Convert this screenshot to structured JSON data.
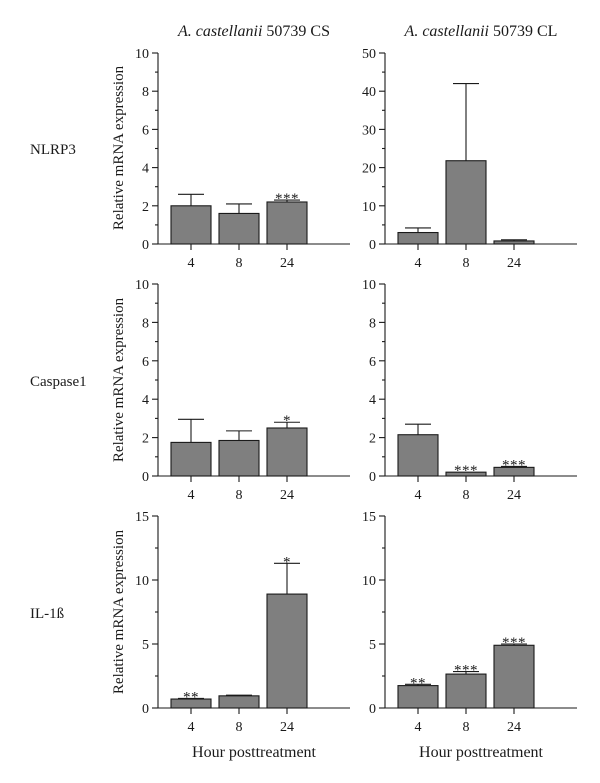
{
  "column_titles": [
    {
      "species": "A. castellanii",
      "rest": " 50739 CS"
    },
    {
      "species": "A. castellanii",
      "rest": " 50739 CL"
    }
  ],
  "row_labels": [
    "NLRP3",
    "Caspase1",
    "IL-1ß"
  ],
  "ylabel": "Relative mRNA expression",
  "xlabel": "Hour posttreatment",
  "colors": {
    "bar": "#7f7f7f",
    "axis": "#1a1a1a"
  },
  "chart_data": [
    {
      "type": "bar",
      "row": "NLRP3",
      "column": "CS",
      "categories": [
        "4",
        "8",
        "24"
      ],
      "values": [
        2.0,
        1.6,
        2.2
      ],
      "errors": [
        0.6,
        0.5,
        0.1
      ],
      "significance": [
        "",
        "",
        "***"
      ],
      "ylim": [
        0,
        10
      ],
      "yticks": [
        0,
        2,
        4,
        6,
        8,
        10
      ]
    },
    {
      "type": "bar",
      "row": "NLRP3",
      "column": "CL",
      "categories": [
        "4",
        "8",
        "24"
      ],
      "values": [
        3.0,
        21.8,
        0.8
      ],
      "errors": [
        1.2,
        20.2,
        0.3
      ],
      "significance": [
        "",
        "",
        ""
      ],
      "ylim": [
        0,
        50
      ],
      "yticks": [
        0,
        10,
        20,
        30,
        40,
        50
      ]
    },
    {
      "type": "bar",
      "row": "Caspase1",
      "column": "CS",
      "categories": [
        "4",
        "8",
        "24"
      ],
      "values": [
        1.75,
        1.85,
        2.5
      ],
      "errors": [
        1.2,
        0.5,
        0.3
      ],
      "significance": [
        "",
        "",
        "*"
      ],
      "ylim": [
        0,
        10
      ],
      "yticks": [
        0,
        2,
        4,
        6,
        8,
        10
      ]
    },
    {
      "type": "bar",
      "row": "Caspase1",
      "column": "CL",
      "categories": [
        "4",
        "8",
        "24"
      ],
      "values": [
        2.15,
        0.2,
        0.45
      ],
      "errors": [
        0.55,
        0.0,
        0.05
      ],
      "significance": [
        "",
        "***",
        "***"
      ],
      "ylim": [
        0,
        10
      ],
      "yticks": [
        0,
        2,
        4,
        6,
        8,
        10
      ]
    },
    {
      "type": "bar",
      "row": "IL-1ß",
      "column": "CS",
      "categories": [
        "4",
        "8",
        "24"
      ],
      "values": [
        0.7,
        0.95,
        8.9
      ],
      "errors": [
        0.05,
        0.05,
        2.4
      ],
      "significance": [
        "**",
        "",
        "*"
      ],
      "ylim": [
        0,
        15
      ],
      "yticks": [
        0,
        5,
        10,
        15
      ]
    },
    {
      "type": "bar",
      "row": "IL-1ß",
      "column": "CL",
      "categories": [
        "4",
        "8",
        "24"
      ],
      "values": [
        1.75,
        2.65,
        4.9
      ],
      "errors": [
        0.1,
        0.2,
        0.1
      ],
      "significance": [
        "**",
        "***",
        "***"
      ],
      "ylim": [
        0,
        15
      ],
      "yticks": [
        0,
        5,
        10,
        15
      ]
    }
  ]
}
